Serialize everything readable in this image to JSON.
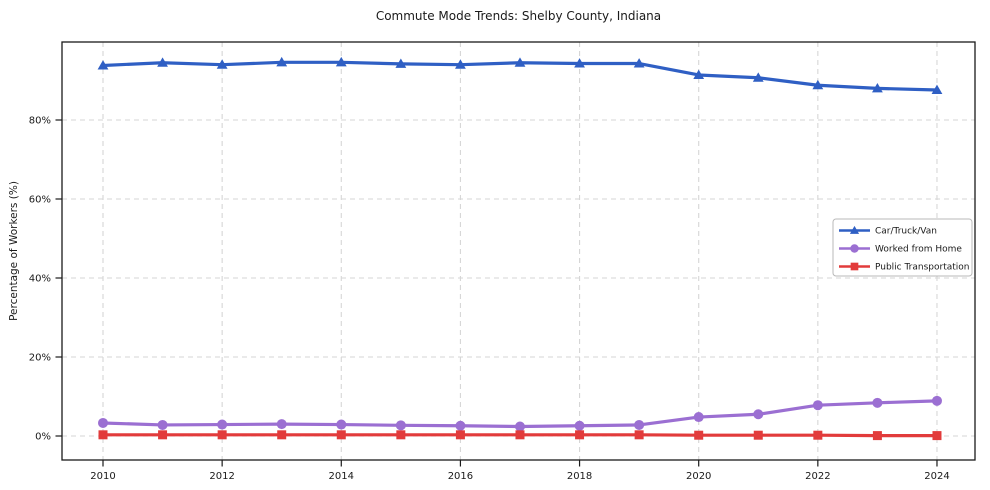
{
  "chart_data": {
    "type": "line",
    "title": "Commute Mode Trends: Shelby County, Indiana",
    "ylabel": "Percentage of Workers (%)",
    "xlabel": "",
    "x": [
      2010,
      2011,
      2012,
      2013,
      2014,
      2015,
      2016,
      2017,
      2018,
      2019,
      2020,
      2021,
      2022,
      2023,
      2024
    ],
    "xticks": [
      2010,
      2012,
      2014,
      2016,
      2018,
      2020,
      2022,
      2024
    ],
    "yticks": [
      0,
      20,
      40,
      60,
      80
    ],
    "ytick_suffix": "%",
    "ylim": [
      -6,
      100
    ],
    "grid": true,
    "grid_style": "dashed",
    "legend_position": "center right",
    "colors": {
      "background": "#ffffff",
      "axis": "#1a1a1a",
      "grid": "#d6d6d6",
      "legend_border": "#b8b8b8",
      "legend_background": "#ffffff"
    },
    "series": [
      {
        "name": "Car/Truck/Van",
        "color": "#2f5fc4",
        "marker": "triangle",
        "values": [
          93.8,
          94.5,
          94.0,
          94.6,
          94.6,
          94.2,
          94.0,
          94.5,
          94.3,
          94.3,
          91.4,
          90.7,
          88.8,
          88.0,
          87.6
        ]
      },
      {
        "name": "Worked from Home",
        "color": "#9b6fd2",
        "marker": "circle",
        "values": [
          3.3,
          2.8,
          2.9,
          3.0,
          2.9,
          2.7,
          2.6,
          2.4,
          2.6,
          2.8,
          4.8,
          5.5,
          7.8,
          8.4,
          8.9
        ]
      },
      {
        "name": "Public Transportation",
        "color": "#e23b3b",
        "marker": "square",
        "values": [
          0.3,
          0.3,
          0.3,
          0.3,
          0.3,
          0.3,
          0.3,
          0.3,
          0.3,
          0.3,
          0.2,
          0.2,
          0.2,
          0.1,
          0.1
        ]
      }
    ]
  }
}
